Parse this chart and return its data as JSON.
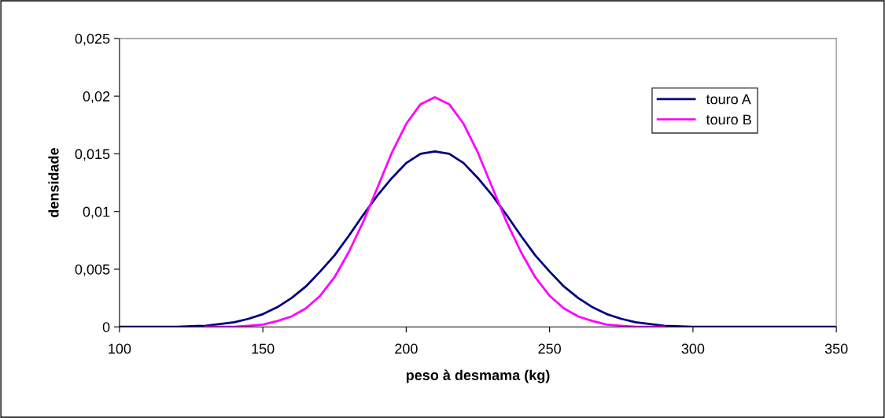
{
  "chart_data": {
    "type": "line",
    "xlabel": "peso à desmama (kg)",
    "ylabel": "densidade",
    "x": [
      100,
      110,
      120,
      130,
      140,
      145,
      150,
      155,
      160,
      165,
      170,
      175,
      180,
      185,
      190,
      195,
      200,
      205,
      210,
      215,
      220,
      225,
      230,
      235,
      240,
      245,
      250,
      255,
      260,
      265,
      270,
      275,
      280,
      290,
      300,
      310,
      320,
      350
    ],
    "series": [
      {
        "name": "touro A",
        "color": "#000080",
        "values": [
          0,
          0,
          0,
          0.0001,
          0.0004,
          0.0007,
          0.0011,
          0.0017,
          0.0025,
          0.0035,
          0.0048,
          0.0062,
          0.0079,
          0.0097,
          0.0114,
          0.0129,
          0.0142,
          0.015,
          0.0152,
          0.015,
          0.0142,
          0.0129,
          0.0114,
          0.0097,
          0.0079,
          0.0062,
          0.0048,
          0.0035,
          0.0025,
          0.0017,
          0.0011,
          0.0007,
          0.0004,
          0.0001,
          0,
          0,
          0,
          0
        ]
      },
      {
        "name": "touro B",
        "color": "#ff00ff",
        "values": [
          null,
          null,
          null,
          0,
          0,
          0.0001,
          0.0002,
          0.0005,
          0.0009,
          0.0016,
          0.0027,
          0.0043,
          0.0065,
          0.0091,
          0.0121,
          0.0151,
          0.0176,
          0.0193,
          0.0199,
          0.0193,
          0.0176,
          0.0151,
          0.0121,
          0.0091,
          0.0065,
          0.0043,
          0.0027,
          0.0016,
          0.0009,
          0.0005,
          0.0002,
          0.0001,
          0,
          0,
          null,
          null,
          null,
          null
        ]
      }
    ],
    "xlim": [
      100,
      350
    ],
    "xticks": [
      100,
      150,
      200,
      250,
      300,
      350
    ],
    "ylim": [
      0,
      0.025
    ],
    "yticks": [
      {
        "value": 0,
        "label": "0"
      },
      {
        "value": 0.005,
        "label": "0,005"
      },
      {
        "value": 0.01,
        "label": "0,01"
      },
      {
        "value": 0.015,
        "label": "0,015"
      },
      {
        "value": 0.02,
        "label": "0,02"
      },
      {
        "value": 0.025,
        "label": "0,025"
      }
    ],
    "legend": "right",
    "marker": "none",
    "line_style": "solid",
    "grid": false
  }
}
